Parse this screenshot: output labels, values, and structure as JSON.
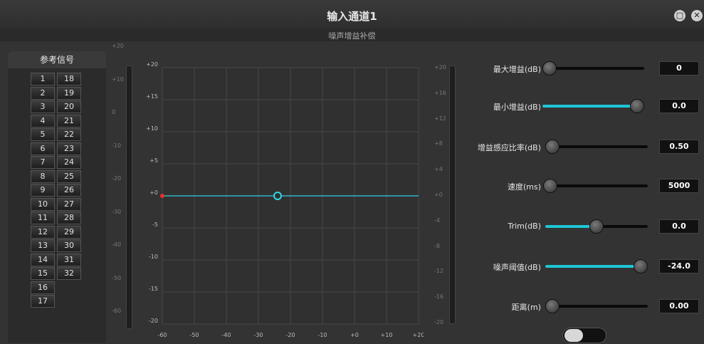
{
  "window": {
    "title": "输入通道1",
    "subtitle": "噪声增益补偿"
  },
  "reference": {
    "title": "参考信号",
    "col1": [
      "1",
      "2",
      "3",
      "4",
      "5",
      "6",
      "7",
      "8",
      "9",
      "10",
      "11",
      "12",
      "13",
      "14",
      "15",
      "16",
      "17"
    ],
    "col2": [
      "18",
      "19",
      "20",
      "21",
      "22",
      "23",
      "24",
      "25",
      "26",
      "27",
      "28",
      "29",
      "30",
      "31",
      "32"
    ]
  },
  "meter_left_scale": [
    "+20",
    "+10",
    "0",
    "-10",
    "-20",
    "-30",
    "-40",
    "-50",
    "-60"
  ],
  "meter_right_scale": [
    "+20",
    "+16",
    "+12",
    "+8",
    "+4",
    "+0",
    "-4",
    "-8",
    "-12",
    "-16",
    "-20"
  ],
  "chart_data": {
    "type": "line",
    "x_ticks": [
      "-60",
      "-50",
      "-40",
      "-30",
      "-20",
      "-10",
      "+0",
      "+10",
      "+20"
    ],
    "y_ticks": [
      "+20",
      "+15",
      "+10",
      "+5",
      "+0",
      "-5",
      "-10",
      "-15",
      "-20"
    ],
    "xlim": [
      -60,
      20
    ],
    "ylim": [
      -20,
      20
    ],
    "series": [
      {
        "x": [
          -60,
          20
        ],
        "y": [
          0,
          0
        ],
        "color": "#2fb6c3"
      }
    ],
    "points": [
      {
        "x": -60,
        "y": 0,
        "color": "#e8302e"
      },
      {
        "x": -24,
        "y": 0,
        "color": "#2fd8e8"
      }
    ]
  },
  "params": [
    {
      "label": "最大增益(dB)",
      "value": "0",
      "level": 0.0
    },
    {
      "label": "最小增益(dB)",
      "value": "0.0",
      "level": 1.0
    },
    {
      "label": "增益感应比率(dB)",
      "value": "0.50",
      "level": 0.0
    },
    {
      "label": "速度(ms)",
      "value": "5000",
      "level": 0.05
    },
    {
      "label": "Trim(dB)",
      "value": "0.0",
      "level": 0.5
    },
    {
      "label": "噪声阈值(dB)",
      "value": "-24.0",
      "level": 1.0
    },
    {
      "label": "距离(m)",
      "value": "0.00",
      "level": 0.0
    }
  ],
  "toggle": {
    "on": false
  },
  "colors": {
    "accent": "#1ec6d6",
    "marker_red": "#e8302e"
  }
}
